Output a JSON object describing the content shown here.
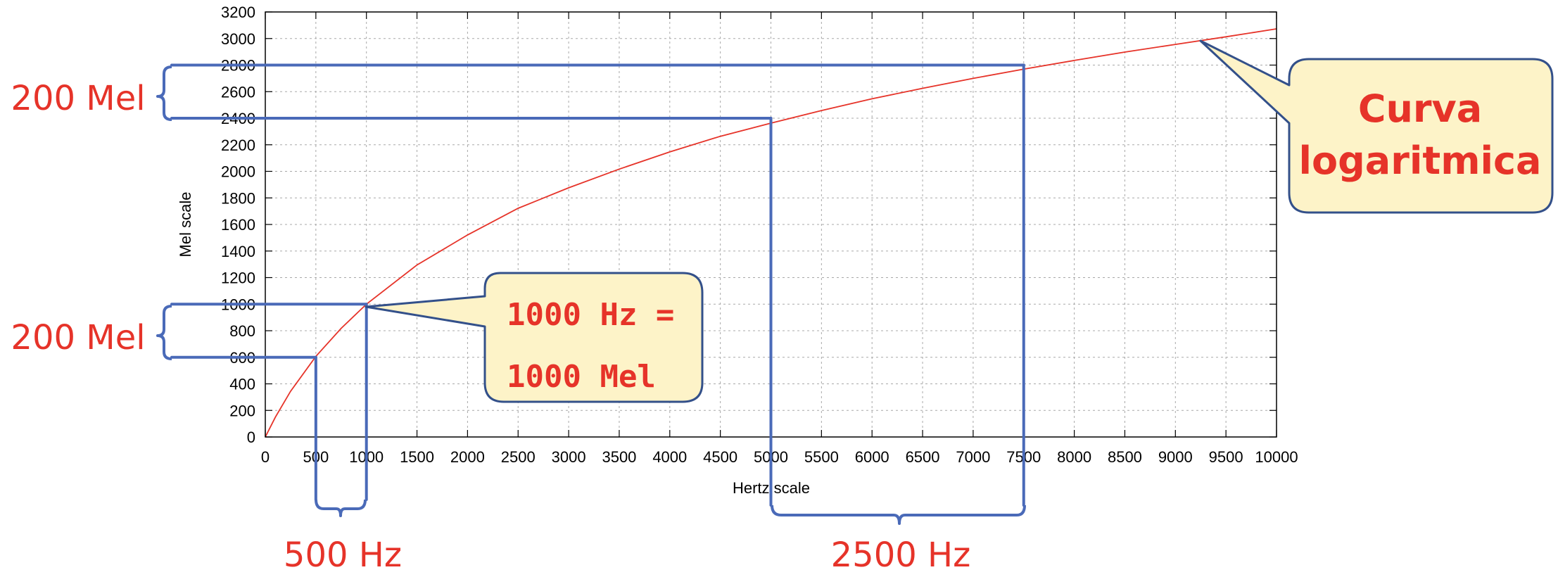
{
  "chart_data": {
    "type": "line",
    "xlabel": "Hertz scale",
    "ylabel": "Mel scale",
    "xlim": [
      0,
      10000
    ],
    "ylim": [
      0,
      3200
    ],
    "x_ticks": [
      0,
      500,
      1000,
      1500,
      2000,
      2500,
      3000,
      3500,
      4000,
      4500,
      5000,
      5500,
      6000,
      6500,
      7000,
      7500,
      8000,
      8500,
      9000,
      9500,
      10000
    ],
    "y_ticks": [
      0,
      200,
      400,
      600,
      800,
      1000,
      1200,
      1400,
      1600,
      1800,
      2000,
      2200,
      2400,
      2600,
      2800,
      3000,
      3200
    ],
    "grid": true,
    "series": [
      {
        "color": "#e63329",
        "x": [
          0,
          100,
          250,
          500,
          750,
          1000,
          1500,
          2000,
          2500,
          3000,
          3500,
          4000,
          4500,
          5000,
          5500,
          6000,
          6500,
          7000,
          7500,
          8000,
          8500,
          9000,
          9500,
          10000
        ],
        "y": [
          0,
          150,
          344,
          607,
          818,
          1000,
          1295,
          1521,
          1722,
          1876,
          2017,
          2146,
          2264,
          2363,
          2458,
          2546,
          2625,
          2700,
          2770,
          2835,
          2898,
          2956,
          3013,
          3073
        ]
      }
    ],
    "guides": {
      "color": "#4a6ab8",
      "horizontal": [
        {
          "y": 2800,
          "x_to": 7500
        },
        {
          "y": 2400,
          "x_to": 5000
        },
        {
          "y": 1000,
          "x_to": 1000
        },
        {
          "y": 600,
          "x_to": 500
        }
      ],
      "vertical": [
        {
          "x": 500,
          "y_from": 600
        },
        {
          "x": 1000,
          "y_from": 1000
        },
        {
          "x": 5000,
          "y_from": 2400
        },
        {
          "x": 7500,
          "y_from": 2800
        }
      ]
    },
    "annotations": {
      "top_mel_interval": "200 Mel",
      "bottom_mel_interval": "200 Mel",
      "left_hz_interval": "500 Hz",
      "right_hz_interval": "2500 Hz",
      "equality_line1": "1000 Hz =",
      "equality_line2": "1000 Mel",
      "curve_line1": "Curva",
      "curve_line2": "logaritmica"
    }
  }
}
